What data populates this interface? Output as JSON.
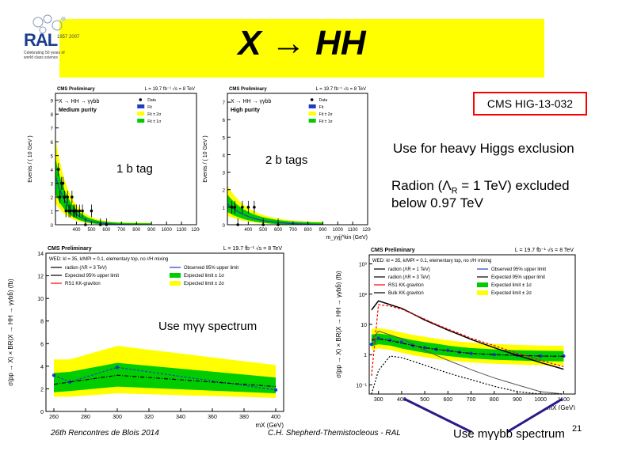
{
  "slide": {
    "title": "X → HH",
    "cms_reference": "CMS HIG-13-032",
    "use_heavy_higgs": "Use for heavy Higgs exclusion",
    "radion_text_line1": "Radion (Λ",
    "radion_sub": "R",
    "radion_text_line1b": " = 1 TeV) excluded",
    "radion_text_line2": "below 0.97 TeV",
    "label_1btag": "1 b tag",
    "label_2btags": "2 b tags",
    "label_mgg": "Use mγγ spectrum",
    "label_mggbb": "Use mγγbb spectrum",
    "footer_left": "26th Rencontres de Blois 2014",
    "footer_center": "C.H. Shepherd-Themistocleous - RAL",
    "page_number": "21",
    "logo_text": "RAL",
    "logo_sub": "Celebrating 50 years of world class science",
    "logo_years": "1957 2007"
  },
  "colors": {
    "banner": "#ffff00",
    "band2": "#ffff00",
    "band1": "#00cc00",
    "observed": "#1f3fbf",
    "expected": "#000000",
    "radion": "#000000",
    "graviton": "#ff0000",
    "arrow": "#2a1a8a"
  },
  "chart_data": [
    {
      "type": "scatter",
      "panel": "top-left",
      "header_left": "CMS Preliminary",
      "header_right": "L = 19.7 fb⁻¹   √s = 8 TeV",
      "process": "X → HH → γγbb",
      "category": "Medium purity",
      "ylabel": "Events / ( 10 GeV )",
      "legend": [
        "Data",
        "Fit",
        "Fit ± 2σ",
        "Fit ± 1σ"
      ],
      "xticks": [
        "400",
        "500",
        "600",
        "700",
        "800",
        "900",
        "1000",
        "1100",
        "1200"
      ],
      "yticks": [
        "0",
        "1",
        "2",
        "3",
        "4",
        "5",
        "6",
        "7",
        "8",
        "9"
      ],
      "xlim": [
        260,
        1200
      ],
      "ylim": [
        0,
        9.5
      ],
      "x": [
        280,
        290,
        300,
        310,
        320,
        330,
        340,
        350,
        360,
        370,
        380,
        390,
        400,
        420,
        440,
        460,
        500,
        560,
        600
      ],
      "y": [
        4,
        2,
        3,
        3,
        2,
        1,
        2,
        1,
        1,
        2,
        1,
        1,
        1,
        1,
        1,
        0,
        1,
        0,
        0
      ]
    },
    {
      "type": "scatter",
      "panel": "top-middle",
      "header_left": "CMS Preliminary",
      "header_right": "L = 19.7 fb⁻¹   √s = 8 TeV",
      "process": "X → HH → γγbb",
      "category": "High purity",
      "ylabel": "Events / ( 10 GeV )",
      "xlabel": "m_γγjj^kin (GeV)",
      "legend": [
        "Data",
        "Fit",
        "Fit ± 2σ",
        "Fit ± 1σ"
      ],
      "xticks": [
        "400",
        "500",
        "600",
        "700",
        "800",
        "900",
        "1000",
        "1100",
        "1200"
      ],
      "yticks": [
        "0",
        "1",
        "2",
        "3",
        "4",
        "5",
        "6",
        "7"
      ],
      "xlim": [
        260,
        1200
      ],
      "ylim": [
        0,
        7.5
      ],
      "x": [
        290,
        310,
        330,
        360,
        400,
        440,
        500,
        600
      ],
      "y": [
        1,
        1,
        0,
        1,
        1,
        1,
        0,
        0
      ]
    },
    {
      "type": "line",
      "panel": "bottom-left",
      "header_left": "CMS Preliminary",
      "header_right": "L = 19.7 fb⁻¹   √s = 8 TeV",
      "model_note": "WED: kl = 35, k/MPl = 0.1, elementary top, no r/H mixing",
      "ylabel": "σ(pp → X) × BR(X → HH → γγbb̄) (fb)",
      "xlabel": "mX (GeV)",
      "xticks": [
        "260",
        "280",
        "300",
        "320",
        "340",
        "360",
        "380",
        "400"
      ],
      "yticks": [
        "0",
        "2",
        "4",
        "6",
        "8",
        "10",
        "12",
        "14"
      ],
      "xlim": [
        255,
        405
      ],
      "ylim": [
        0,
        14
      ],
      "legend": [
        "radion (ΛR = 3 TeV)",
        "Observed 95% upper limit",
        "Expected 95% upper limit",
        "Expected limit ± 1σ",
        "RS1 KK-graviton",
        "Expected limit ± 2σ"
      ],
      "x": [
        260,
        270,
        300,
        400
      ],
      "series": [
        {
          "name": "Observed 95% upper limit",
          "values": [
            3.2,
            2.6,
            3.9,
            1.9
          ]
        },
        {
          "name": "Expected 95% upper limit",
          "values": [
            2.4,
            2.6,
            3.2,
            2.2
          ]
        }
      ],
      "band1_lo": [
        1.7,
        1.8,
        2.2,
        1.6
      ],
      "band1_hi": [
        3.4,
        3.5,
        4.3,
        3.0
      ],
      "band2_lo": [
        1.3,
        1.3,
        1.6,
        1.2
      ],
      "band2_hi": [
        4.6,
        4.6,
        5.8,
        4.1
      ]
    },
    {
      "type": "line",
      "panel": "bottom-right",
      "header_left": "CMS Preliminary",
      "header_right": "L = 19.7 fb⁻¹   √s = 8 TeV",
      "model_note": "WED: kl = 35, k/MPl = 0.1, elementary top, no r/H mixing",
      "ylabel": "σ(pp → X) × BR(X → HH → γγbb̄) (fb)",
      "xlabel": "mX (GeV)",
      "xticks": [
        "300",
        "400",
        "500",
        "600",
        "700",
        "800",
        "900",
        "1000",
        "1100"
      ],
      "yticks": [
        "10⁻¹",
        "1",
        "10",
        "10²",
        "10³"
      ],
      "xlim": [
        260,
        1150
      ],
      "log_y": true,
      "ylim": [
        0.05,
        2000
      ],
      "legend": [
        "radion (ΛR = 1 TeV)",
        "Observed 95% upper limit",
        "radion (ΛR = 3 TeV)",
        "Expected 95% upper limit",
        "RS1 KK-graviton",
        "Expected limit ± 1σ",
        "Bulk KK-graviton",
        "Expected limit ± 2σ"
      ],
      "x": [
        270,
        300,
        350,
        400,
        450,
        500,
        550,
        600,
        650,
        700,
        800,
        900,
        1000,
        1100
      ],
      "series": [
        {
          "name": "Observed 95% upper limit",
          "values": [
            2.2,
            3.5,
            3.0,
            2.6,
            2.0,
            1.7,
            1.5,
            1.4,
            1.2,
            1.1,
            1.0,
            0.95,
            0.9,
            0.9
          ]
        },
        {
          "name": "Expected 95% upper limit",
          "values": [
            3.0,
            3.3,
            2.9,
            2.4,
            2.0,
            1.7,
            1.5,
            1.35,
            1.2,
            1.1,
            1.0,
            0.95,
            0.9,
            0.88
          ]
        },
        {
          "name": "radion (ΛR = 1 TeV)",
          "values": [
            30,
            60,
            45,
            34,
            22,
            14,
            9.5,
            6.5,
            4.6,
            3.2,
            1.7,
            0.95,
            0.55,
            0.33
          ]
        },
        {
          "name": "RS1 KK-graviton",
          "values": [
            0.2,
            45,
            40,
            32,
            22,
            15,
            10,
            7,
            5,
            3.5,
            2,
            1.1,
            0.65,
            0.4
          ]
        },
        {
          "name": "radion (ΛR = 3 TeV)",
          "values": [
            3,
            6,
            4.5,
            3.4,
            2.2,
            1.4,
            0.95,
            0.65,
            0.46,
            0.32,
            0.17,
            0.1,
            0.06,
            0.04
          ]
        },
        {
          "name": "Bulk KK-graviton",
          "values": [
            0.05,
            0.3,
            0.9,
            0.8,
            0.6,
            0.45,
            0.33,
            0.25,
            0.19,
            0.15,
            0.09,
            0.06,
            0.045,
            0.035
          ]
        }
      ],
      "band1_lo": [
        1.9,
        2.2,
        2.0,
        1.6,
        1.35,
        1.15,
        1.0,
        0.9,
        0.82,
        0.75,
        0.68,
        0.64,
        0.61,
        0.6
      ],
      "band1_hi": [
        4.6,
        5.0,
        4.4,
        3.6,
        3.0,
        2.6,
        2.3,
        2.0,
        1.8,
        1.65,
        1.5,
        1.4,
        1.35,
        1.32
      ],
      "band2_lo": [
        1.4,
        1.6,
        1.45,
        1.15,
        0.95,
        0.82,
        0.72,
        0.65,
        0.6,
        0.55,
        0.5,
        0.47,
        0.45,
        0.44
      ],
      "band2_hi": [
        7.0,
        7.5,
        6.6,
        5.4,
        4.5,
        3.9,
        3.4,
        3.0,
        2.7,
        2.5,
        2.25,
        2.1,
        2.0,
        1.95
      ]
    }
  ]
}
